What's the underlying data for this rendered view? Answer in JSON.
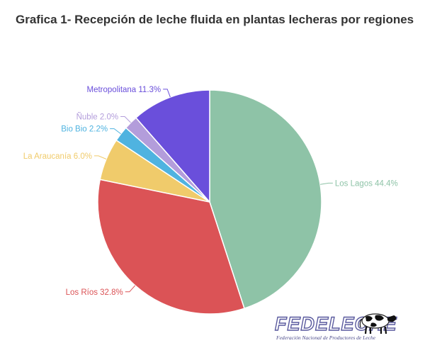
{
  "title": "Grafica 1- Recepción de leche fluida en plantas lecheras por regiones",
  "chart_data": {
    "type": "pie",
    "title": "Grafica 1- Recepción de leche fluida en plantas lecheras por regiones",
    "slices": [
      {
        "label": "Los Lagos",
        "value": 44.4,
        "display": "Los Lagos 44.4%",
        "color": "#8ec3a7"
      },
      {
        "label": "Los Ríos",
        "value": 32.8,
        "display": "Los Ríos 32.8%",
        "color": "#db5356"
      },
      {
        "label": "La Araucanía",
        "value": 6.0,
        "display": "La Araucanía 6.0%",
        "color": "#f0cb6b"
      },
      {
        "label": "Bio Bio",
        "value": 2.2,
        "display": "Bio Bio 2.2%",
        "color": "#4fb3e0"
      },
      {
        "label": "Ñuble",
        "value": 2.0,
        "display": "Ñuble 2.0%",
        "color": "#b39ddb"
      },
      {
        "label": "Metropolitana",
        "value": 11.3,
        "display": "Metropolitana 11.3%",
        "color": "#6a4fdb"
      }
    ]
  },
  "logo": {
    "name": "FEDELECHE",
    "subtitle": "Federación Nacional de Productores de Leche"
  }
}
